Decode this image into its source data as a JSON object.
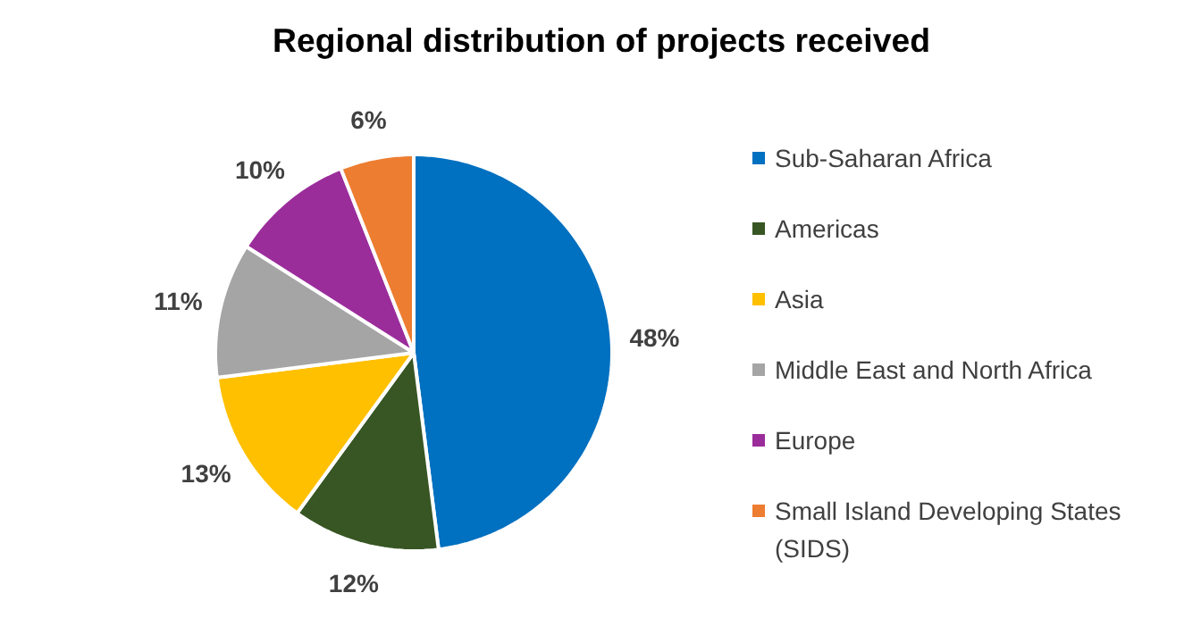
{
  "chart_data": {
    "type": "pie",
    "title": "Regional distribution of projects received",
    "categories": [
      "Sub-Saharan Africa",
      "Americas",
      "Asia",
      "Middle East and North Africa",
      "Europe",
      "Small Island Developing States (SIDS)"
    ],
    "values": [
      48,
      12,
      13,
      11,
      10,
      6
    ],
    "colors": [
      "#0070c0",
      "#375623",
      "#ffc000",
      "#a5a5a5",
      "#9b2d9b",
      "#ed7d31"
    ],
    "value_labels": [
      "48%",
      "12%",
      "13%",
      "11%",
      "10%",
      "6%"
    ],
    "legend": "right"
  }
}
